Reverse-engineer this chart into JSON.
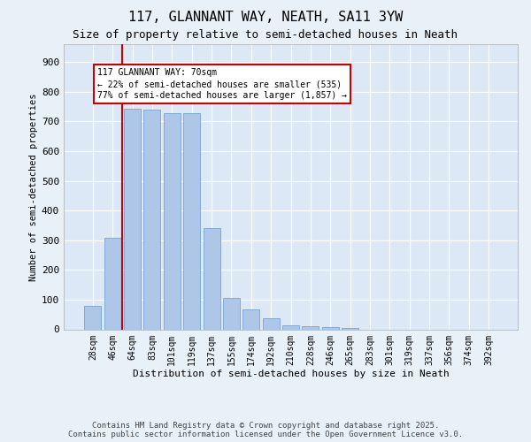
{
  "title_line1": "117, GLANNANT WAY, NEATH, SA11 3YW",
  "title_line2": "Size of property relative to semi-detached houses in Neath",
  "xlabel": "Distribution of semi-detached houses by size in Neath",
  "ylabel": "Number of semi-detached properties",
  "categories": [
    "28sqm",
    "46sqm",
    "64sqm",
    "83sqm",
    "101sqm",
    "119sqm",
    "137sqm",
    "155sqm",
    "174sqm",
    "192sqm",
    "210sqm",
    "228sqm",
    "246sqm",
    "265sqm",
    "283sqm",
    "301sqm",
    "319sqm",
    "337sqm",
    "356sqm",
    "374sqm",
    "392sqm"
  ],
  "values": [
    80,
    308,
    743,
    740,
    728,
    728,
    342,
    105,
    68,
    37,
    13,
    10,
    8,
    5,
    0,
    0,
    0,
    0,
    0,
    0,
    0
  ],
  "bar_color": "#aec6e8",
  "bar_edge_color": "#6699cc",
  "vline_color": "#cc0000",
  "vline_pos": 1.5,
  "annotation_text": "117 GLANNANT WAY: 70sqm\n← 22% of semi-detached houses are smaller (535)\n77% of semi-detached houses are larger (1,857) →",
  "ylim": [
    0,
    960
  ],
  "yticks": [
    0,
    100,
    200,
    300,
    400,
    500,
    600,
    700,
    800,
    900
  ],
  "bg_color": "#e8f0f8",
  "plot_bg_color": "#dce8f5",
  "grid_color": "white",
  "footer_line1": "Contains HM Land Registry data © Crown copyright and database right 2025.",
  "footer_line2": "Contains public sector information licensed under the Open Government Licence v3.0.",
  "title_fontsize": 11,
  "subtitle_fontsize": 9,
  "axis_label_fontsize": 7.5,
  "tick_fontsize": 7,
  "footer_fontsize": 6.5,
  "annotation_fontsize": 7
}
